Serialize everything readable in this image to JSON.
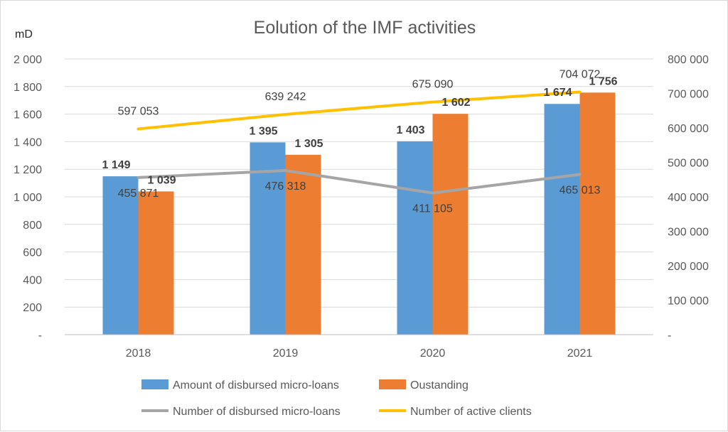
{
  "chart_data": {
    "type": "bar",
    "title": "Eolution of the IMF activities",
    "unit_label": "mD",
    "categories": [
      "2018",
      "2019",
      "2020",
      "2021"
    ],
    "left_axis": {
      "ylim": [
        0,
        2000
      ],
      "step": 200,
      "ticks": [
        "-",
        "200",
        "400",
        "600",
        "800",
        "1 000",
        "1 200",
        "1 400",
        "1 600",
        "1 800",
        "2 000"
      ]
    },
    "right_axis": {
      "ylim": [
        0,
        800000
      ],
      "step": 100000,
      "ticks": [
        "-",
        "100 000",
        "200 000",
        "300 000",
        "400 000",
        "500 000",
        "600 000",
        "700 000",
        "800 000"
      ]
    },
    "series": [
      {
        "name": "Amount of disbursed micro-loans",
        "type": "bar",
        "axis": "left",
        "color": "#5b9bd5",
        "values": [
          1149,
          1395,
          1403,
          1674
        ],
        "labels": [
          "1 149",
          "1 395",
          "1 403",
          "1 674"
        ]
      },
      {
        "name": "Oustanding",
        "type": "bar",
        "axis": "left",
        "color": "#ed7d31",
        "values": [
          1039,
          1305,
          1602,
          1756
        ],
        "labels": [
          "1 039",
          "1 305",
          "1 602",
          "1 756"
        ]
      },
      {
        "name": "Number of disbursed micro-loans",
        "type": "line",
        "axis": "right",
        "color": "#a5a5a5",
        "values": [
          455871,
          476318,
          411105,
          465013
        ],
        "labels": [
          "455 871",
          "476 318",
          "411 105",
          "465 013"
        ]
      },
      {
        "name": "Number of active clients",
        "type": "line",
        "axis": "right",
        "color": "#ffc000",
        "values": [
          597053,
          639242,
          675090,
          704072
        ],
        "labels": [
          "597 053",
          "639 242",
          "675 090",
          "704 072"
        ]
      }
    ],
    "grid": true,
    "legend_position": "bottom"
  }
}
